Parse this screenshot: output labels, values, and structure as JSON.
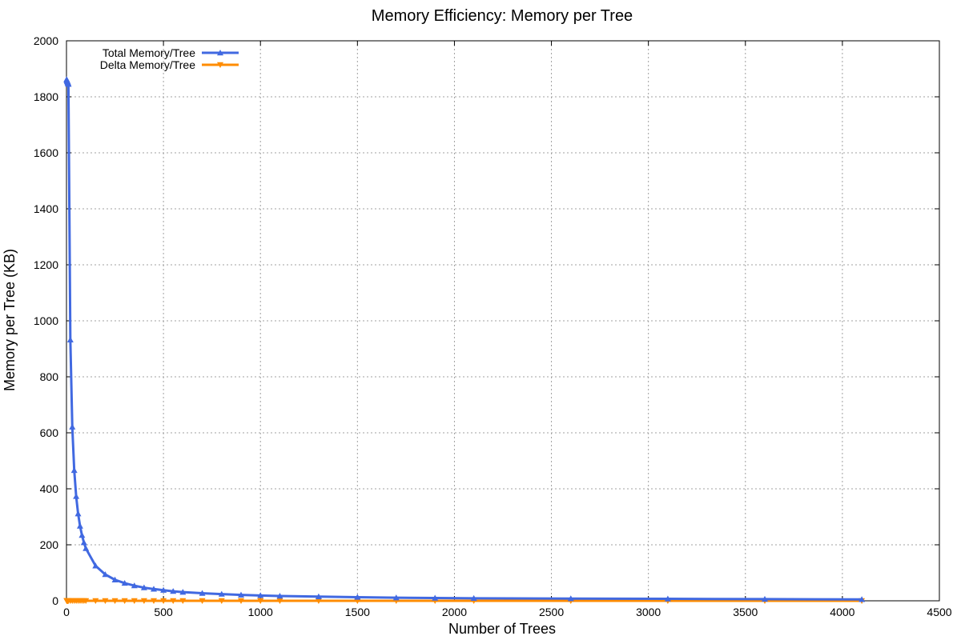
{
  "chart_data": {
    "type": "line",
    "title": "Memory Efficiency: Memory per Tree",
    "xlabel": "Number of Trees",
    "ylabel": "Memory per Tree (KB)",
    "xlim": [
      0,
      4500
    ],
    "ylim": [
      0,
      2000
    ],
    "xticks": [
      0,
      500,
      1000,
      1500,
      2000,
      2500,
      3000,
      3500,
      4000,
      4500
    ],
    "yticks": [
      0,
      200,
      400,
      600,
      800,
      1000,
      1200,
      1400,
      1600,
      1800,
      2000
    ],
    "grid": true,
    "legend_position": "top-left",
    "x": [
      1,
      2,
      3,
      4,
      5,
      6,
      7,
      8,
      9,
      10,
      20,
      30,
      40,
      50,
      60,
      70,
      80,
      90,
      100,
      150,
      200,
      250,
      300,
      350,
      400,
      450,
      500,
      550,
      600,
      700,
      800,
      900,
      1000,
      1100,
      1300,
      1500,
      1700,
      1900,
      2100,
      2600,
      3100,
      3600,
      4100
    ],
    "series": [
      {
        "name": "Total Memory/Tree",
        "color": "#4169e1",
        "marker": "triangle-up",
        "values": [
          1862,
          1860,
          1858,
          1856,
          1855,
          1853,
          1851,
          1849,
          1847,
          1845,
          932,
          621,
          466,
          373,
          311,
          267,
          234,
          208,
          187,
          125,
          94,
          75,
          63,
          54,
          47,
          42,
          38,
          34,
          31,
          27,
          24,
          21,
          19,
          17,
          15,
          13,
          11,
          10,
          9,
          8,
          7,
          6,
          5
        ]
      },
      {
        "name": "Delta Memory/Tree",
        "color": "#ff8c00",
        "marker": "triangle-down",
        "values": [
          0,
          0,
          0,
          0,
          0,
          0,
          0,
          0,
          0,
          0,
          0,
          0,
          0,
          0,
          0,
          0,
          0,
          0,
          0,
          0,
          0,
          0,
          0,
          0,
          0,
          0,
          0,
          0,
          0,
          0,
          0,
          0,
          0,
          0,
          0,
          0,
          0,
          0,
          0,
          0,
          0,
          0,
          0
        ]
      }
    ]
  }
}
